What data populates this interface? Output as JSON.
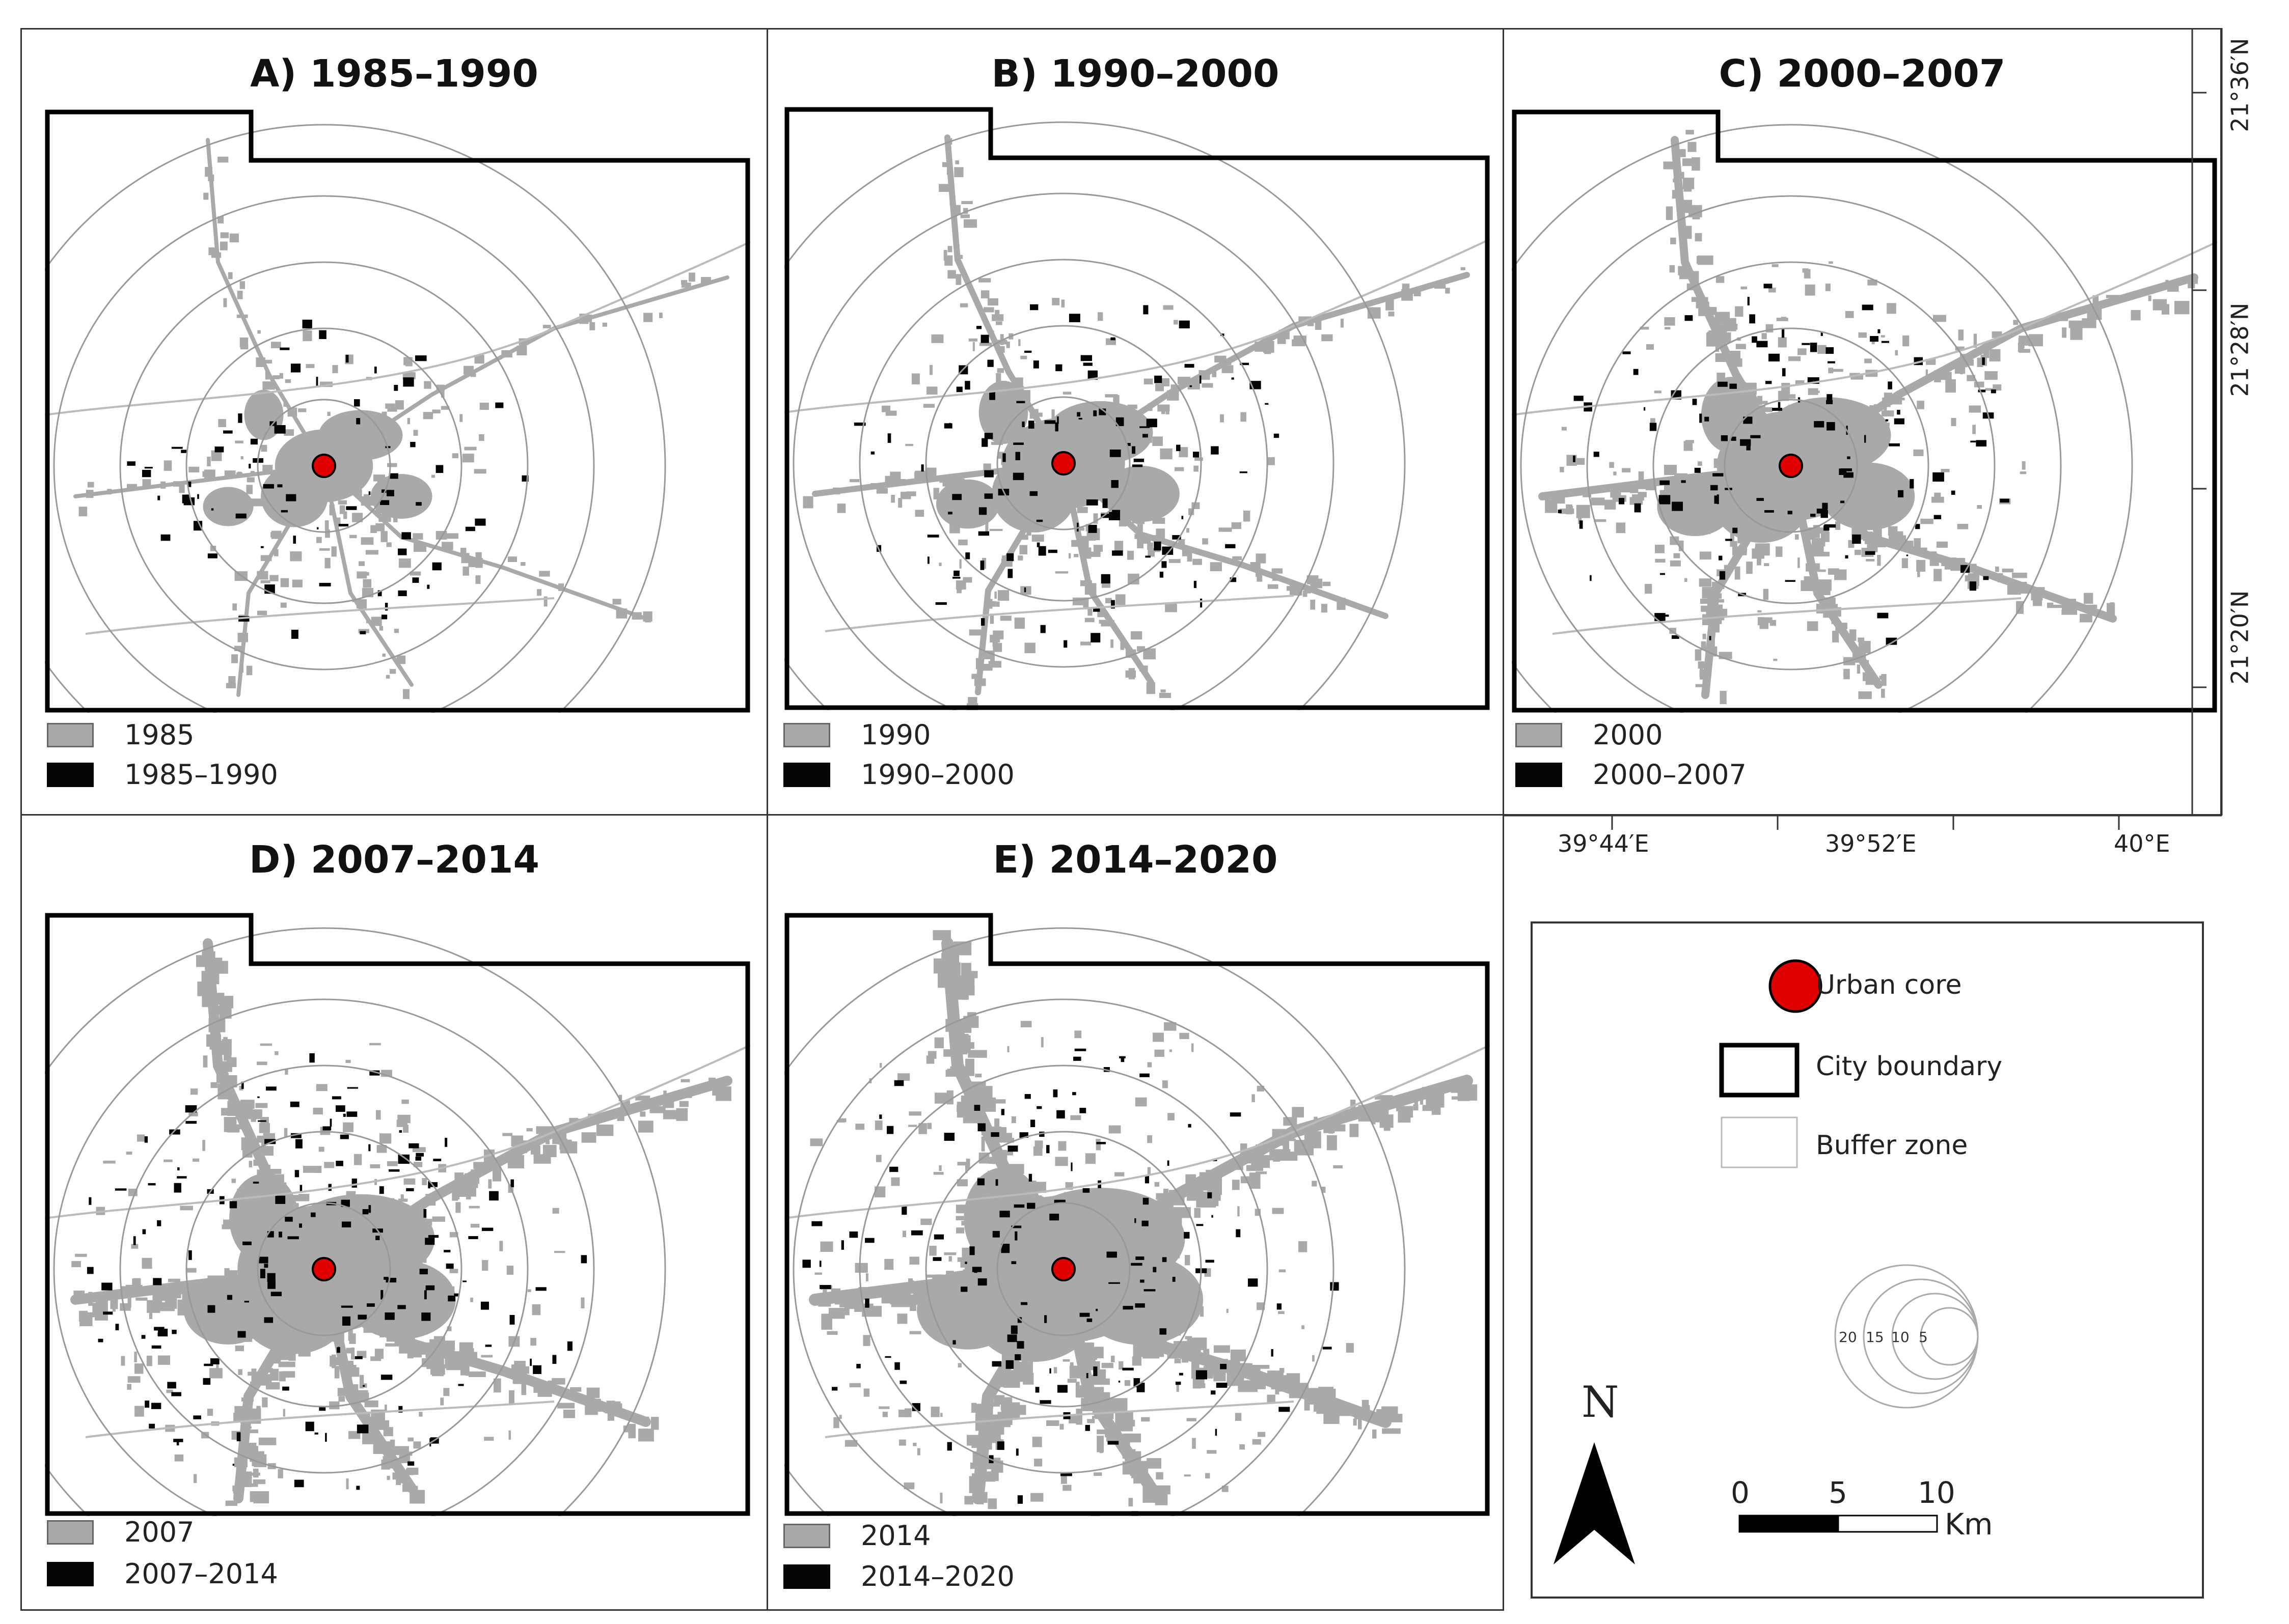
{
  "panels": [
    {
      "id": "A",
      "title": "A) 1985–1990",
      "legend_base": "1985",
      "legend_change": "1985–1990"
    },
    {
      "id": "B",
      "title": "B) 1990–2000",
      "legend_base": "1990",
      "legend_change": "1990–2000"
    },
    {
      "id": "C",
      "title": "C) 2000–2007",
      "legend_base": "2000",
      "legend_change": "2000–2007"
    },
    {
      "id": "D",
      "title": "D) 2007–2014",
      "legend_base": "2007",
      "legend_change": "2007–2014"
    },
    {
      "id": "E",
      "title": "E) 2014–2020",
      "legend_base": "2014",
      "legend_change": "2014–2020"
    }
  ],
  "coordinates": {
    "latitude": [
      "21°36′N",
      "21°28′N",
      "21°20′N"
    ],
    "longitude": [
      "39°44′E",
      "39°52′E",
      "40°E"
    ]
  },
  "legend": {
    "urban_core": "Urban core",
    "city_boundary": "City boundary",
    "buffer_zone": "Buffer zone",
    "buffer_rings": [
      "20",
      "15",
      "10",
      "5"
    ],
    "north": "N",
    "scale_ticks": [
      "0",
      "5",
      "10"
    ],
    "scale_unit": "Km"
  },
  "colors": {
    "urban_base": "#a9a9a9",
    "urban_change": "#050505",
    "urban_core": "#e00000",
    "buffer_line": "#999999",
    "boundary": "#000000"
  }
}
